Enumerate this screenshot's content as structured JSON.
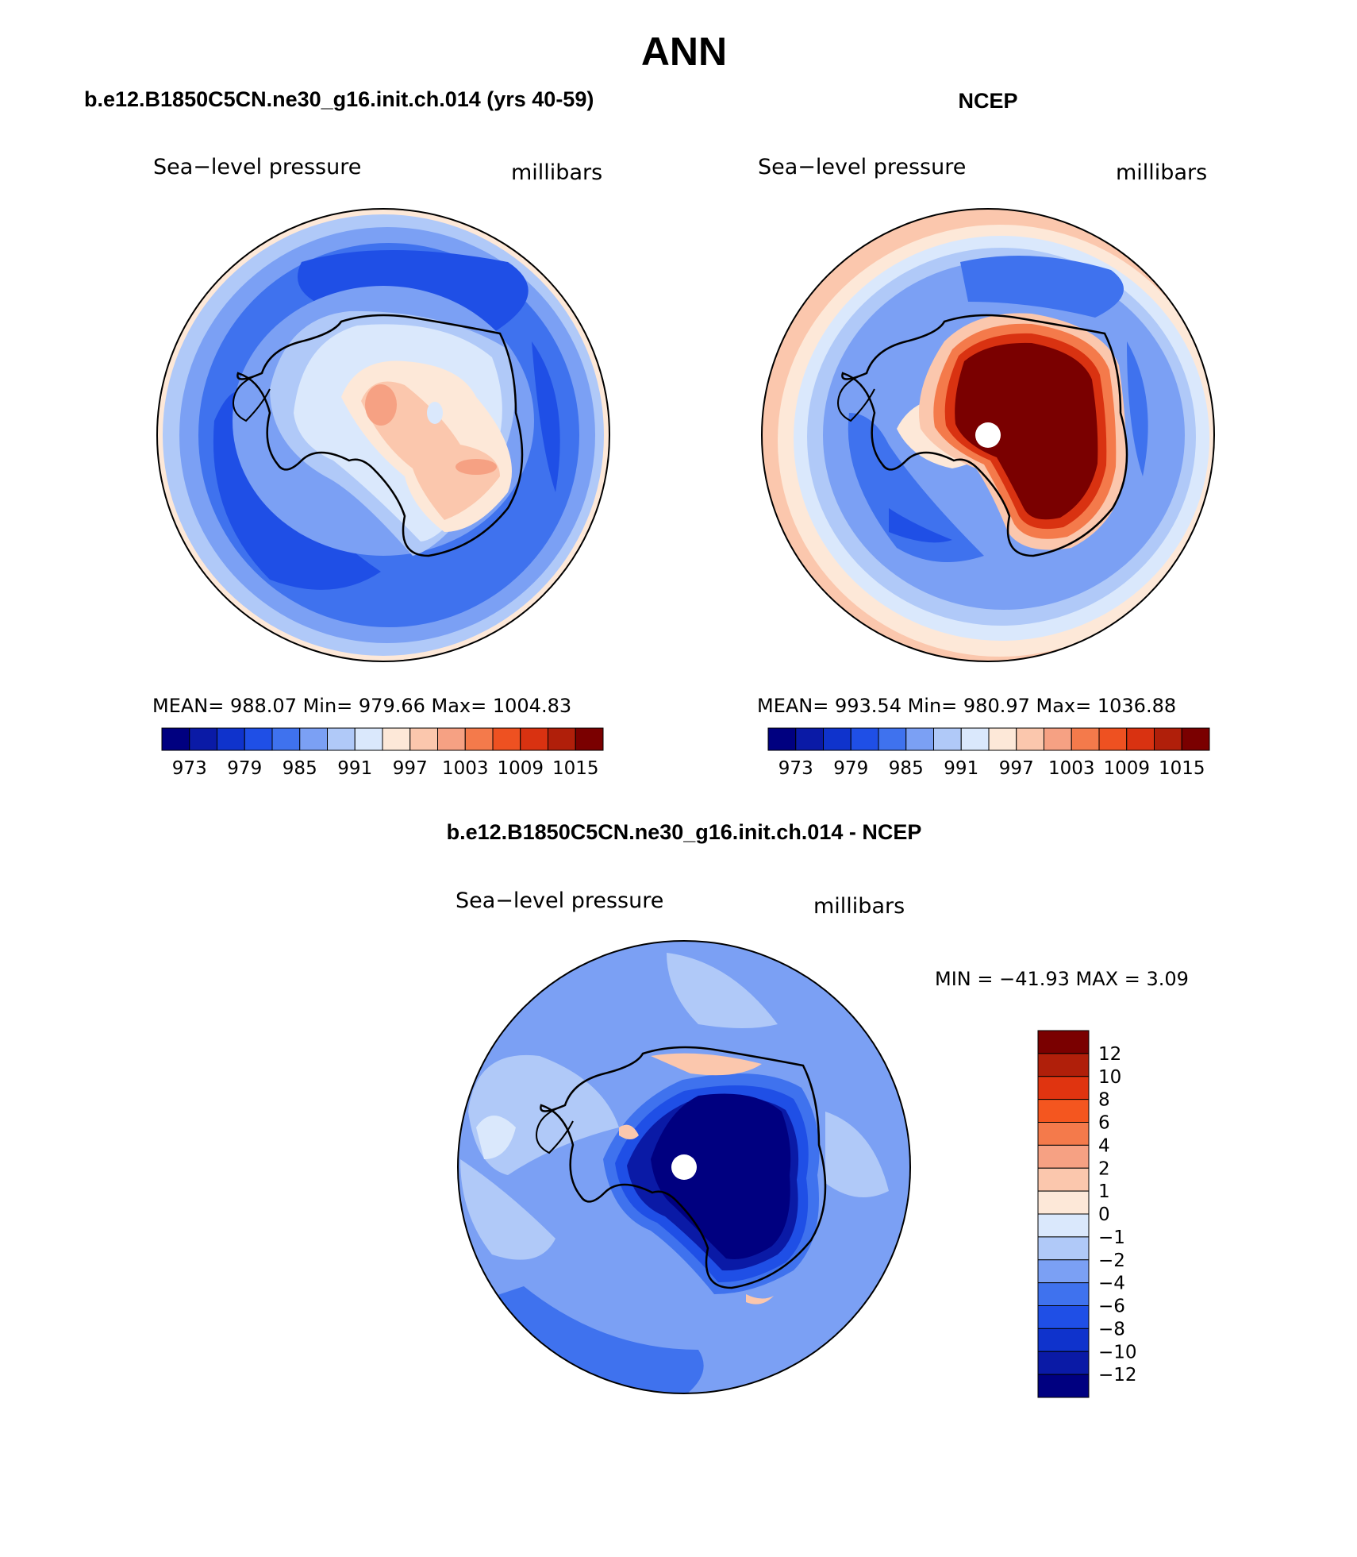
{
  "figure": {
    "title": "ANN",
    "difference_title": "b.e12.B1850C5CN.ne30_g16.init.ch.014 - NCEP"
  },
  "panels": [
    {
      "title": "b.e12.B1850C5CN.ne30_g16.init.ch.014 (yrs 40-59)",
      "variable": "Sea−level pressure",
      "units": "millibars",
      "stats": "MEAN=  988.07    Min=  979.66    Max=  1004.83",
      "colorbar_labels": [
        "973",
        "979",
        "985",
        "991",
        "997",
        "1003",
        "1009",
        "1015"
      ]
    },
    {
      "title": "NCEP",
      "variable": "Sea−level pressure",
      "units": "millibars",
      "stats": "MEAN=  993.54    Min=  980.97    Max=  1036.88",
      "colorbar_labels": [
        "973",
        "979",
        "985",
        "991",
        "997",
        "1003",
        "1009",
        "1015"
      ]
    }
  ],
  "difference": {
    "variable": "Sea−level pressure",
    "units": "millibars",
    "stats": "MIN  =  −41.93  MAX  =     3.09",
    "colorbar_labels": [
      "12",
      "10",
      "8",
      "6",
      "4",
      "2",
      "1",
      "0",
      "−1",
      "−2",
      "−4",
      "−6",
      "−8",
      "−10",
      "−12"
    ]
  },
  "colors": {
    "abs_scale": [
      "#000080",
      "#0a1aa6",
      "#0f33cc",
      "#1f4fe6",
      "#3f72ee",
      "#7ba0f4",
      "#b0c9f8",
      "#dae8fc",
      "#fde8d8",
      "#fbc7ad",
      "#f6a183",
      "#f47a4b",
      "#ee5121",
      "#d93211",
      "#b01f0a",
      "#7a0000"
    ],
    "diff_scale": [
      "#7a0000",
      "#b01f0a",
      "#e03410",
      "#f4561f",
      "#f47a4b",
      "#f6a183",
      "#fbc7ad",
      "#fde8d8",
      "#dae8fc",
      "#b0c9f8",
      "#7ba0f4",
      "#3f72ee",
      "#1f4fe6",
      "#0f33cc",
      "#0a1aa6",
      "#000080"
    ]
  }
}
